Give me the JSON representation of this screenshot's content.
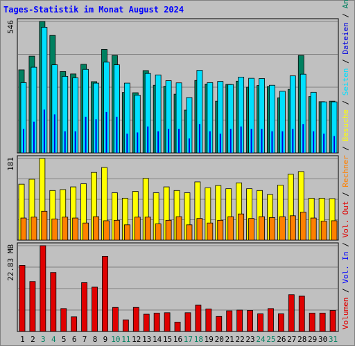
{
  "title": "Tages-Statistik im Monat August 2024",
  "chart_data": [
    {
      "type": "bar",
      "panel": "top",
      "ymax_label": "546",
      "ylim": [
        0,
        546
      ],
      "categories": [
        "1",
        "2",
        "3",
        "4",
        "5",
        "6",
        "7",
        "8",
        "9",
        "10",
        "11",
        "12",
        "13",
        "14",
        "15",
        "16",
        "17",
        "18",
        "19",
        "20",
        "21",
        "22",
        "23",
        "24",
        "25",
        "26",
        "27",
        "28",
        "29",
        "30",
        "31"
      ],
      "weekend_days": [
        "3",
        "4",
        "10",
        "11",
        "17",
        "18",
        "24",
        "25",
        "31"
      ],
      "series": [
        {
          "name": "Anfragen",
          "color": "#008060",
          "values": [
            345,
            402,
            546,
            488,
            338,
            328,
            368,
            296,
            430,
            405,
            251,
            250,
            342,
            281,
            277,
            244,
            178,
            301,
            286,
            215,
            285,
            298,
            273,
            280,
            276,
            229,
            264,
            405,
            234,
            213,
            215
          ]
        },
        {
          "name": "Dateien",
          "color": "#00e0ff",
          "values": [
            292,
            356,
            522,
            366,
            318,
            312,
            347,
            290,
            377,
            366,
            290,
            240,
            330,
            324,
            300,
            291,
            230,
            343,
            292,
            297,
            284,
            315,
            310,
            309,
            281,
            256,
            320,
            327,
            252,
            212,
            212
          ]
        },
        {
          "name": "Seiten",
          "color": "#0000e0",
          "values": [
            100,
            130,
            180,
            160,
            90,
            90,
            150,
            140,
            170,
            150,
            80,
            85,
            110,
            90,
            100,
            100,
            60,
            120,
            90,
            80,
            100,
            110,
            100,
            100,
            90,
            90,
            100,
            120,
            90,
            80,
            70
          ]
        }
      ],
      "legend": [
        "Anfragen",
        "Dateien",
        "Seiten"
      ]
    },
    {
      "type": "bar",
      "panel": "middle",
      "ymax_label": "181",
      "ylim": [
        0,
        181
      ],
      "categories": [
        "1",
        "2",
        "3",
        "4",
        "5",
        "6",
        "7",
        "8",
        "9",
        "10",
        "11",
        "12",
        "13",
        "14",
        "15",
        "16",
        "17",
        "18",
        "19",
        "20",
        "21",
        "22",
        "23",
        "24",
        "25",
        "26",
        "27",
        "28",
        "29",
        "30",
        "31"
      ],
      "series": [
        {
          "name": "Besuche",
          "color": "#ffff00",
          "values": [
            124,
            135,
            181,
            110,
            112,
            118,
            125,
            150,
            161,
            105,
            93,
            108,
            137,
            105,
            118,
            110,
            105,
            129,
            116,
            121,
            114,
            127,
            114,
            110,
            101,
            122,
            146,
            152,
            93,
            93,
            92
          ]
        },
        {
          "name": "Rechner",
          "color": "#ff8000",
          "values": [
            49,
            51,
            64,
            47,
            51,
            49,
            38,
            52,
            43,
            44,
            34,
            51,
            51,
            36,
            44,
            52,
            34,
            48,
            38,
            44,
            52,
            58,
            48,
            52,
            50,
            52,
            54,
            62,
            49,
            42,
            43
          ]
        }
      ],
      "legend": [
        "Besuche",
        "Rechner"
      ]
    },
    {
      "type": "bar",
      "panel": "bottom",
      "ymax_label": "22.83 MB",
      "ylim": [
        0,
        22.83
      ],
      "categories": [
        "1",
        "2",
        "3",
        "4",
        "5",
        "6",
        "7",
        "8",
        "9",
        "10",
        "11",
        "12",
        "13",
        "14",
        "15",
        "16",
        "17",
        "18",
        "19",
        "20",
        "21",
        "22",
        "23",
        "24",
        "25",
        "26",
        "27",
        "28",
        "29",
        "30",
        "31"
      ],
      "series": [
        {
          "name": "Vol. Out",
          "color": "#e00000",
          "values": [
            17.6,
            13.3,
            22.83,
            15.7,
            6.1,
            3.9,
            13.0,
            11.8,
            20.0,
            6.4,
            3.1,
            6.4,
            4.6,
            4.9,
            5.0,
            2.5,
            5.0,
            7.0,
            6.0,
            4.0,
            5.5,
            5.7,
            5.6,
            4.7,
            6.1,
            4.7,
            9.8,
            9.4,
            4.9,
            4.9,
            5.6
          ]
        },
        {
          "name": "Vol. In",
          "color": "#0000ff",
          "values": [
            0,
            0,
            0,
            0,
            0,
            0,
            0,
            0,
            0,
            0,
            0,
            0,
            0,
            0,
            0,
            0,
            0,
            0,
            0,
            0,
            0,
            0,
            0,
            0,
            0,
            0,
            0,
            0,
            0,
            0,
            0
          ]
        }
      ],
      "legend": [
        "Volumen",
        "Vol. In",
        "Vol. Out"
      ]
    }
  ],
  "right_legend": [
    {
      "text": "Volumen",
      "color": "#e00000"
    },
    {
      "text": " / ",
      "color": "#000000"
    },
    {
      "text": "Vol. In",
      "color": "#0000ff"
    },
    {
      "text": " / ",
      "color": "#000000"
    },
    {
      "text": "Vol. Out",
      "color": "#e00000"
    },
    {
      "text": " / ",
      "color": "#000000"
    },
    {
      "text": "Rechner",
      "color": "#ff8000"
    },
    {
      "text": " / ",
      "color": "#000000"
    },
    {
      "text": "Besuche",
      "color": "#ffff00"
    },
    {
      "text": " / ",
      "color": "#000000"
    },
    {
      "text": "Seiten",
      "color": "#00e0ff"
    },
    {
      "text": " / ",
      "color": "#000000"
    },
    {
      "text": "Dateien",
      "color": "#0000e0"
    },
    {
      "text": " / ",
      "color": "#000000"
    },
    {
      "text": "Anfragen",
      "color": "#008060"
    }
  ],
  "colors": {
    "background": "#c0c0c0",
    "plot_bg": "#c0c0c0",
    "weekday_label": "#000000",
    "weekend_label": "#008060"
  }
}
